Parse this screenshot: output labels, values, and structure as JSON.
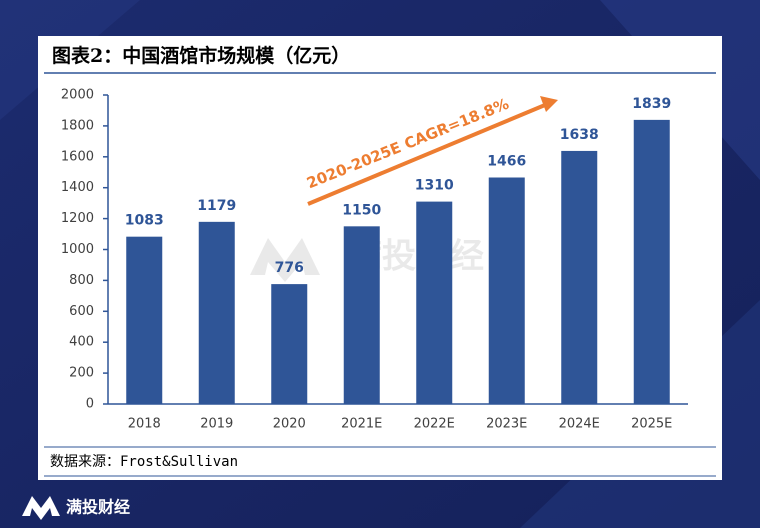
{
  "chart_data": {
    "type": "bar",
    "title": "图表2：中国酒馆市场规模（亿元）",
    "categories": [
      "2018",
      "2019",
      "2020",
      "2021E",
      "2022E",
      "2023E",
      "2024E",
      "2025E"
    ],
    "values": [
      1083,
      1179,
      776,
      1150,
      1310,
      1466,
      1638,
      1839
    ],
    "color": "#2f5597",
    "ylim": [
      0,
      2000
    ],
    "yticks": [
      0,
      200,
      400,
      600,
      800,
      1000,
      1200,
      1400,
      1600,
      1800,
      2000
    ],
    "annotation": "2020-2025E CAGR=18.8%",
    "annotation_color": "#ed7d31",
    "source": "数据来源：Frost&Sullivan"
  },
  "watermark": "满投财经",
  "footer_logo": "满投财经"
}
